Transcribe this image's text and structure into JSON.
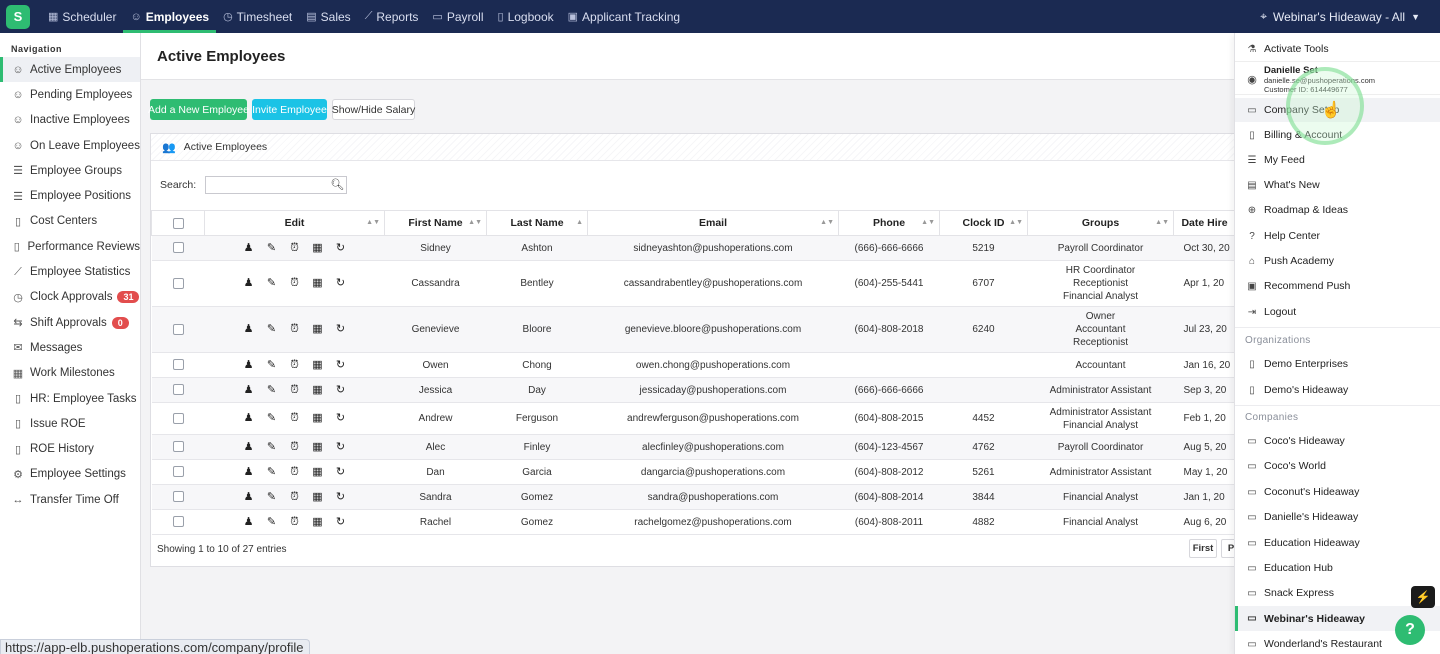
{
  "topnav": {
    "items": [
      {
        "label": "Scheduler",
        "icon": "calendar-icon"
      },
      {
        "label": "Employees",
        "icon": "person-icon",
        "active": true
      },
      {
        "label": "Timesheet",
        "icon": "clock-icon"
      },
      {
        "label": "Sales",
        "icon": "register-icon"
      },
      {
        "label": "Reports",
        "icon": "chart-icon"
      },
      {
        "label": "Payroll",
        "icon": "money-icon"
      },
      {
        "label": "Logbook",
        "icon": "book-icon"
      },
      {
        "label": "Applicant Tracking",
        "icon": "clipboard-icon"
      }
    ],
    "location": "Webinar's Hideaway - All"
  },
  "sidebar": {
    "title": "Navigation",
    "items": [
      {
        "label": "Active Employees",
        "active": true
      },
      {
        "label": "Pending Employees"
      },
      {
        "label": "Inactive Employees"
      },
      {
        "label": "On Leave Employees"
      },
      {
        "label": "Employee Groups"
      },
      {
        "label": "Employee Positions"
      },
      {
        "label": "Cost Centers"
      },
      {
        "label": "Performance Reviews"
      },
      {
        "label": "Employee Statistics"
      },
      {
        "label": "Clock Approvals",
        "badge": "31"
      },
      {
        "label": "Shift Approvals",
        "badge": "0"
      },
      {
        "label": "Messages"
      },
      {
        "label": "Work Milestones"
      },
      {
        "label": "HR: Employee Tasks"
      },
      {
        "label": "Issue ROE"
      },
      {
        "label": "ROE History"
      },
      {
        "label": "Employee Settings"
      },
      {
        "label": "Transfer Time Off"
      }
    ]
  },
  "status_url": "https://app-elb.pushoperations.com/company/profile",
  "main": {
    "title": "Active Employees",
    "buttons": {
      "add": "Add a New Employee",
      "invite": "Invite Employee",
      "salary": "Show/Hide Salary"
    },
    "panel_title": "Active Employees",
    "search_label": "Search:",
    "search_value": "",
    "columns": [
      "Edit",
      "First Name",
      "Last Name",
      "Email",
      "Phone",
      "Clock ID",
      "Groups",
      "Date Hire"
    ],
    "rows": [
      {
        "first": "Sidney",
        "last": "Ashton",
        "email": "sidneyashton@pushoperations.com",
        "phone": "(666)-666-6666",
        "clock": "5219",
        "groups": [
          "Payroll Coordinator"
        ],
        "hire": "Oct 30, 20"
      },
      {
        "first": "Cassandra",
        "last": "Bentley",
        "email": "cassandrabentley@pushoperations.com",
        "phone": "(604)-255-5441",
        "clock": "6707",
        "groups": [
          "HR Coordinator",
          "Receptionist",
          "Financial Analyst"
        ],
        "hire": "Apr 1, 20"
      },
      {
        "first": "Genevieve",
        "last": "Bloore",
        "email": "genevieve.bloore@pushoperations.com",
        "phone": "(604)-808-2018",
        "clock": "6240",
        "groups": [
          "Owner",
          "Accountant",
          "Receptionist"
        ],
        "hire": "Jul 23, 20"
      },
      {
        "first": "Owen",
        "last": "Chong",
        "email": "owen.chong@pushoperations.com",
        "phone": "",
        "clock": "",
        "groups": [
          "Accountant"
        ],
        "hire": "Jan 16, 20"
      },
      {
        "first": "Jessica",
        "last": "Day",
        "email": "jessicaday@pushoperations.com",
        "phone": "(666)-666-6666",
        "clock": "",
        "groups": [
          "Administrator Assistant"
        ],
        "hire": "Sep 3, 20"
      },
      {
        "first": "Andrew",
        "last": "Ferguson",
        "email": "andrewferguson@pushoperations.com",
        "phone": "(604)-808-2015",
        "clock": "4452",
        "groups": [
          "Administrator Assistant",
          "Financial Analyst"
        ],
        "hire": "Feb 1, 20"
      },
      {
        "first": "Alec",
        "last": "Finley",
        "email": "alecfinley@pushoperations.com",
        "phone": "(604)-123-4567",
        "clock": "4762",
        "groups": [
          "Payroll Coordinator"
        ],
        "hire": "Aug 5, 20"
      },
      {
        "first": "Dan",
        "last": "Garcia",
        "email": "dangarcia@pushoperations.com",
        "phone": "(604)-808-2012",
        "clock": "5261",
        "groups": [
          "Administrator Assistant"
        ],
        "hire": "May 1, 20"
      },
      {
        "first": "Sandra",
        "last": "Gomez",
        "email": "sandra@pushoperations.com",
        "phone": "(604)-808-2014",
        "clock": "3844",
        "groups": [
          "Financial Analyst"
        ],
        "hire": "Jan 1, 20"
      },
      {
        "first": "Rachel",
        "last": "Gomez",
        "email": "rachelgomez@pushoperations.com",
        "phone": "(604)-808-2011",
        "clock": "4882",
        "groups": [
          "Financial Analyst"
        ],
        "hire": "Aug 6, 20"
      }
    ],
    "showing": "Showing 1 to 10 of 27 entries",
    "pager": {
      "first": "First",
      "prev": "P"
    }
  },
  "dropdown": {
    "activate_tools": "Activate Tools",
    "user": {
      "name": "Danielle Set",
      "email": "danielle.se@pushoperations.com",
      "customer_id": "Customer ID: 614449677"
    },
    "menu": [
      "Company Setup",
      "Billing & Account",
      "My Feed",
      "What's New",
      "Roadmap & Ideas",
      "Help Center",
      "Push Academy",
      "Recommend Push",
      "Logout"
    ],
    "organizations_label": "Organizations",
    "organizations": [
      "Demo Enterprises",
      "Demo's Hideaway"
    ],
    "companies_label": "Companies",
    "companies": [
      "Coco's Hideaway",
      "Coco's World",
      "Coconut's Hideaway",
      "Danielle's Hideaway",
      "Education Hideaway",
      "Education Hub",
      "Snack Express",
      "Webinar's Hideaway",
      "Wonderland's Restaurant"
    ],
    "selected_company": "Webinar's Hideaway"
  },
  "colors": {
    "topbar": "#1b2a52",
    "accent_green": "#2ebc72",
    "accent_cyan": "#1bc3e6",
    "badge_red": "#e24d4d"
  }
}
